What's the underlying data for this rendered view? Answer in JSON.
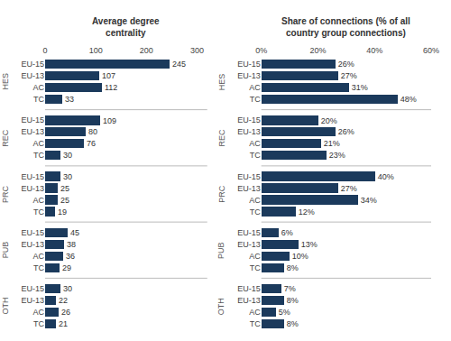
{
  "chart_data": [
    {
      "type": "bar",
      "orientation": "horizontal",
      "title": "Average degree\ncentrality",
      "categories": [
        "EU-15",
        "EU-13",
        "AC",
        "TC"
      ],
      "series": [
        {
          "name": "HES",
          "color": "#1b3a5c",
          "values": [
            245,
            107,
            112,
            33
          ]
        },
        {
          "name": "REC",
          "color": "#1b3a5c",
          "values": [
            109,
            80,
            76,
            30
          ]
        },
        {
          "name": "PRC",
          "color": "#1b3a5c",
          "values": [
            30,
            25,
            25,
            19
          ]
        },
        {
          "name": "PUB",
          "color": "#1b3a5c",
          "values": [
            45,
            38,
            36,
            29
          ]
        },
        {
          "name": "OTH",
          "color": "#1b3a5c",
          "values": [
            30,
            22,
            26,
            21
          ]
        }
      ],
      "xlim": [
        0,
        320
      ],
      "xticks": [
        0,
        100,
        200,
        300
      ],
      "grid": false,
      "data_labels": true
    },
    {
      "type": "bar",
      "orientation": "horizontal",
      "title": "Share of connections (% of all\ncountry group connections)",
      "categories": [
        "EU-15",
        "EU-13",
        "AC",
        "TC"
      ],
      "series": [
        {
          "name": "HES",
          "color": "#1b3a5c",
          "values": [
            26,
            27,
            31,
            48
          ],
          "value_labels": [
            "26%",
            "27%",
            "31%",
            "48%"
          ]
        },
        {
          "name": "REC",
          "color": "#1b3a5c",
          "values": [
            20,
            26,
            21,
            23
          ],
          "value_labels": [
            "20%",
            "26%",
            "21%",
            "23%"
          ]
        },
        {
          "name": "PRC",
          "color": "#1b3a5c",
          "values": [
            40,
            27,
            34,
            12
          ],
          "value_labels": [
            "40%",
            "27%",
            "34%",
            "12%"
          ]
        },
        {
          "name": "PUB",
          "color": "#1b3a5c",
          "values": [
            6,
            13,
            10,
            8
          ],
          "value_labels": [
            "6%",
            "13%",
            "10%",
            "8%"
          ]
        },
        {
          "name": "OTH",
          "color": "#1b3a5c",
          "values": [
            7,
            8,
            5,
            8
          ],
          "value_labels": [
            "7%",
            "8%",
            "5%",
            "8%"
          ]
        }
      ],
      "xlim": [
        0,
        60
      ],
      "xticks": [
        {
          "value": 0,
          "label": "0%"
        },
        {
          "value": 20,
          "label": "20%"
        },
        {
          "value": 40,
          "label": "40%"
        },
        {
          "value": 60,
          "label": "60%"
        }
      ],
      "grid": false,
      "data_labels": true
    }
  ]
}
